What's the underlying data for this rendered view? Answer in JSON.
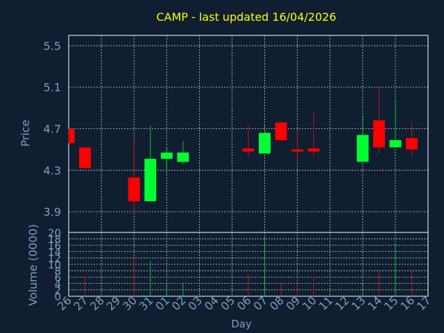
{
  "chart_data": {
    "type": "candlestick",
    "title": "CAMP - last updated 16/04/2026",
    "xlabel": "Day",
    "price_panel": {
      "ylabel": "Price",
      "yticks": [
        3.9,
        4.3,
        4.7,
        5.1,
        5.5
      ],
      "ylim": [
        3.7,
        5.6
      ],
      "grid": true
    },
    "volume_panel": {
      "ylabel": "Volume (0000)",
      "yticks": [
        0,
        2,
        4,
        6,
        8,
        10,
        12,
        14,
        16,
        18,
        20
      ],
      "ylim": [
        0,
        20
      ],
      "grid": true
    },
    "x_tick_labels": [
      "26",
      "27",
      "28",
      "29",
      "30",
      "31",
      "01",
      "02",
      "03",
      "04",
      "05",
      "06",
      "07",
      "08",
      "09",
      "10",
      "11",
      "12",
      "13",
      "14",
      "15",
      "16",
      "17"
    ],
    "candles": [
      {
        "day": "26",
        "open": 4.7,
        "close": 4.56,
        "high": 4.7,
        "low": 4.56,
        "volume": 0
      },
      {
        "day": "27",
        "open": 4.52,
        "close": 4.32,
        "high": 4.52,
        "low": 4.32,
        "volume": 6
      },
      {
        "day": "30",
        "open": 4.23,
        "close": 4.0,
        "high": 4.57,
        "low": 3.9,
        "volume": 12
      },
      {
        "day": "31",
        "open": 4.0,
        "close": 4.41,
        "high": 4.73,
        "low": 4.0,
        "volume": 11
      },
      {
        "day": "01",
        "open": 4.41,
        "close": 4.47,
        "high": 4.53,
        "low": 4.3,
        "volume": 4
      },
      {
        "day": "02",
        "open": 4.38,
        "close": 4.47,
        "high": 4.58,
        "low": 4.36,
        "volume": 4
      },
      {
        "day": "06",
        "open": 4.51,
        "close": 4.48,
        "high": 4.73,
        "low": 4.43,
        "volume": 7
      },
      {
        "day": "07",
        "open": 4.46,
        "close": 4.66,
        "high": 4.73,
        "low": 4.46,
        "volume": 19
      },
      {
        "day": "08",
        "open": 4.76,
        "close": 4.59,
        "high": 4.77,
        "low": 4.58,
        "volume": 4
      },
      {
        "day": "09",
        "open": 4.5,
        "close": 4.49,
        "high": 4.67,
        "low": 4.39,
        "volume": 4
      },
      {
        "day": "10",
        "open": 4.51,
        "close": 4.48,
        "high": 4.86,
        "low": 4.44,
        "volume": 6
      },
      {
        "day": "13",
        "open": 4.38,
        "close": 4.64,
        "high": 4.83,
        "low": 4.38,
        "volume": 4
      },
      {
        "day": "14",
        "open": 4.78,
        "close": 4.52,
        "high": 5.1,
        "low": 4.46,
        "volume": 8
      },
      {
        "day": "15",
        "open": 4.52,
        "close": 4.59,
        "high": 4.98,
        "low": 4.52,
        "volume": 16
      },
      {
        "day": "16",
        "open": 4.61,
        "close": 4.5,
        "high": 4.77,
        "low": 4.44,
        "volume": 8
      }
    ]
  },
  "colors": {
    "background": "#0f1e30",
    "plot_bg": "#0f1e30",
    "frame": "#ffffff",
    "grid": "#cfd6dc",
    "title": "#ffff00",
    "axis_text": "#7f9fbf",
    "up": "#00ff33",
    "down": "#ff0000",
    "wick_up": "#00cc22",
    "wick_down": "#cc1111"
  }
}
